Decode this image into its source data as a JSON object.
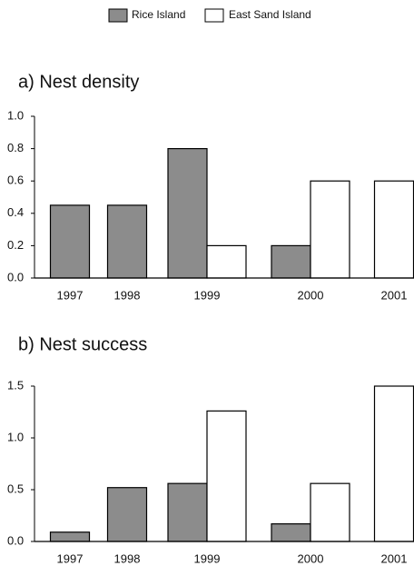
{
  "chart_data": [
    {
      "type": "bar",
      "title": "a) Nest density",
      "categories": [
        "1997",
        "1998",
        "1999",
        "2000",
        "2001"
      ],
      "series": [
        {
          "name": "Rice Island",
          "color": "#8c8c8c",
          "values": [
            0.45,
            0.45,
            0.8,
            0.2,
            null
          ]
        },
        {
          "name": "East Sand Island",
          "color": "#ffffff",
          "values": [
            null,
            null,
            0.2,
            0.6,
            0.6
          ]
        }
      ],
      "ylim": [
        0,
        1
      ],
      "yticks": [
        {
          "value": 0,
          "label": "0.0"
        },
        0.2,
        0.4,
        0.6,
        0.8,
        {
          "value": 1,
          "label": "1.0"
        }
      ]
    },
    {
      "type": "bar",
      "title": "b) Nest success",
      "categories": [
        "1997",
        "1998",
        "1999",
        "2000",
        "2001"
      ],
      "series": [
        {
          "color": "#8c8c8c",
          "values": [
            0.09,
            0.52,
            0.56,
            0.17,
            null
          ]
        },
        {
          "color": "#ffffff",
          "values": [
            null,
            null,
            1.26,
            0.56,
            1.5
          ]
        }
      ],
      "ylim": [
        0,
        1.5
      ],
      "yticks": [
        {
          "value": 0,
          "label": "0.0"
        },
        0.5,
        {
          "value": 1,
          "label": "1.0"
        },
        1.5
      ]
    }
  ]
}
